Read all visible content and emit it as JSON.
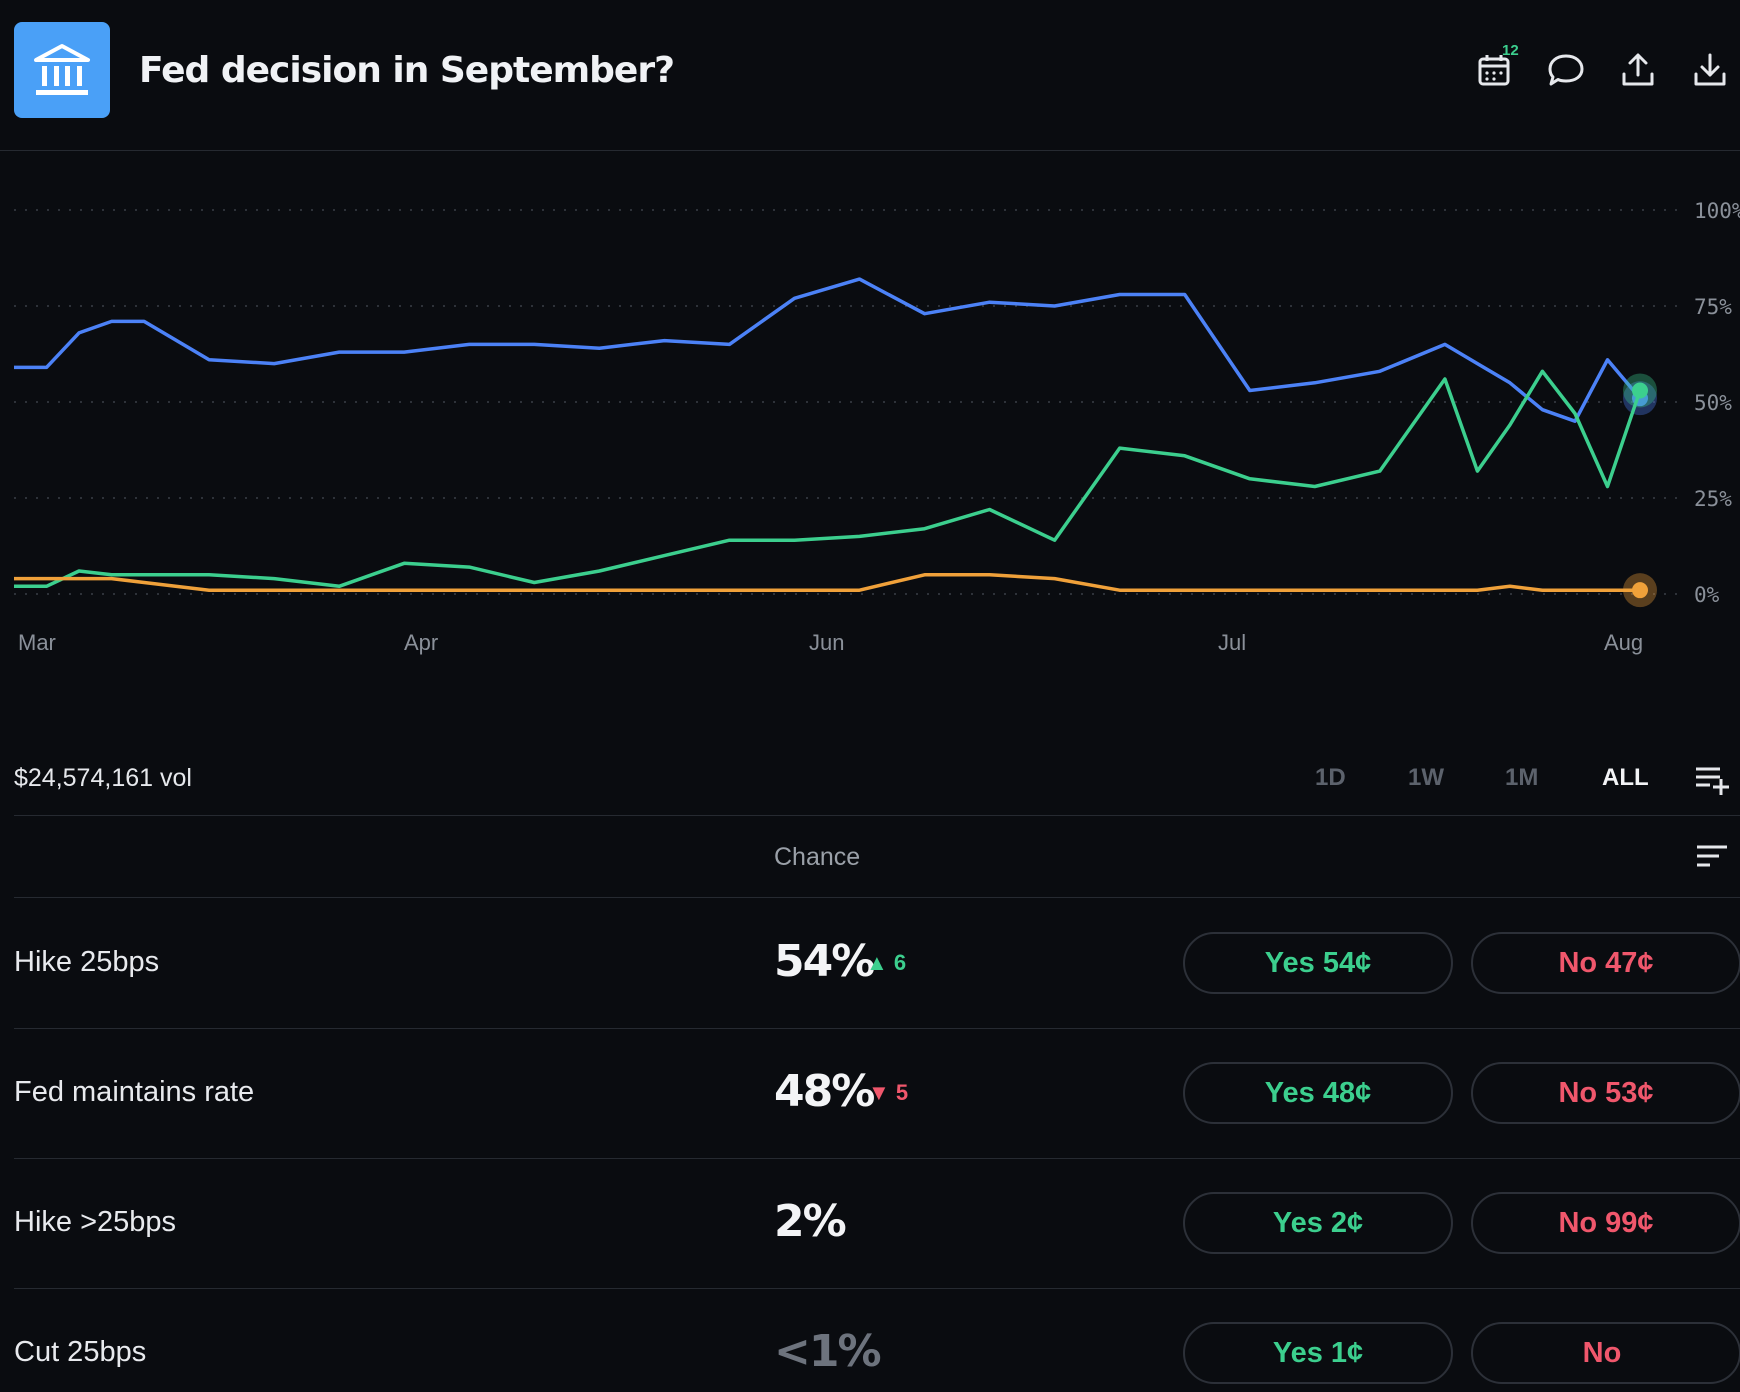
{
  "header": {
    "title": "Fed decision in September?",
    "calendar_badge": "12",
    "icons": [
      "bank-icon",
      "calendar-icon",
      "comment-icon",
      "share-icon",
      "download-icon"
    ]
  },
  "chart_data": {
    "type": "line",
    "x_tick_labels": [
      "Mar",
      "Apr",
      "Jun",
      "Jul",
      "Aug"
    ],
    "y_tick_labels": [
      "100%",
      "75%",
      "50%",
      "25%",
      "0%"
    ],
    "ylim": [
      0,
      100
    ],
    "grid": true,
    "x": [
      0,
      2,
      4,
      6,
      8,
      12,
      16,
      20,
      24,
      28,
      32,
      36,
      40,
      44,
      48,
      52,
      56,
      60,
      64,
      68,
      72,
      76,
      80,
      84,
      88,
      90,
      92,
      94,
      96,
      98,
      100
    ],
    "series": [
      {
        "color": "#4c82f7",
        "values": [
          59,
          59,
          68,
          71,
          71,
          61,
          60,
          63,
          63,
          65,
          65,
          64,
          66,
          65,
          77,
          82,
          73,
          76,
          75,
          78,
          78,
          53,
          55,
          58,
          65,
          60,
          55,
          48,
          45,
          61,
          51
        ]
      },
      {
        "color": "#3ccf8e",
        "values": [
          2,
          2,
          6,
          5,
          5,
          5,
          4,
          2,
          8,
          7,
          3,
          6,
          10,
          14,
          14,
          15,
          17,
          22,
          14,
          38,
          36,
          30,
          28,
          32,
          56,
          32,
          44,
          58,
          47,
          28,
          53
        ]
      },
      {
        "color": "#f0a13a",
        "values": [
          4,
          4,
          4,
          4,
          3,
          1,
          1,
          1,
          1,
          1,
          1,
          1,
          1,
          1,
          1,
          1,
          5,
          5,
          4,
          1,
          1,
          1,
          1,
          1,
          1,
          1,
          2,
          1,
          1,
          1,
          1
        ]
      }
    ]
  },
  "volume": "$24,574,161 vol",
  "ranges": [
    {
      "label": "1D",
      "active": false
    },
    {
      "label": "1W",
      "active": false
    },
    {
      "label": "1M",
      "active": false
    },
    {
      "label": "ALL",
      "active": true
    }
  ],
  "table": {
    "chance_header": "Chance",
    "rows": [
      {
        "name": "Hike 25bps",
        "chance": "54%",
        "delta": "6",
        "delta_dir": "up",
        "yes_label": "Yes",
        "yes_price": "54¢",
        "no_label": "No",
        "no_price": "47¢"
      },
      {
        "name": "Fed maintains rate",
        "chance": "48%",
        "delta": "5",
        "delta_dir": "down",
        "yes_label": "Yes",
        "yes_price": "48¢",
        "no_label": "No",
        "no_price": "53¢"
      },
      {
        "name": "Hike >25bps",
        "chance": "2%",
        "delta": "",
        "delta_dir": "",
        "yes_label": "Yes",
        "yes_price": "2¢",
        "no_label": "No",
        "no_price": "99¢"
      },
      {
        "name": "Cut 25bps",
        "chance": "<1%",
        "delta": "",
        "delta_dir": "",
        "yes_label": "Yes",
        "yes_price": "1¢",
        "no_label": "No",
        "no_price": ""
      }
    ]
  }
}
